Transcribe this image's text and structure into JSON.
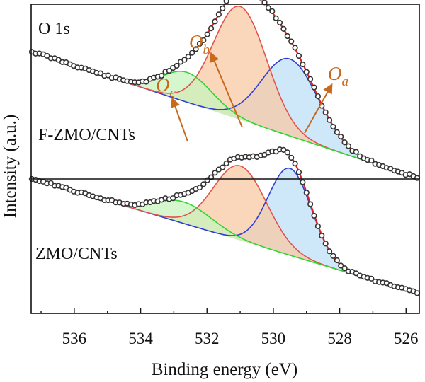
{
  "chart_data": {
    "type": "line",
    "title": "O 1s",
    "xlabel": "Binding energy (eV)",
    "ylabel": "Intensity (a.u.)",
    "xlim": [
      537.3,
      525.6
    ],
    "x_reversed": true,
    "x_ticks": [
      536,
      534,
      532,
      530,
      528,
      526
    ],
    "y_ticks_shown": false,
    "legend": "none",
    "panels": [
      {
        "label": "F-ZMO/CNTs",
        "baseline": 1.0,
        "x_range": [
          537.3,
          525.6
        ],
        "components": [
          {
            "name": "O_a",
            "center": 529.5,
            "sigma": 0.85,
            "amp": 0.85,
            "color": "#2d3ed6",
            "fill": "#bfe0f7"
          },
          {
            "name": "O_b",
            "center": 531.0,
            "sigma": 0.8,
            "amp": 1.25,
            "color": "#e2524b",
            "fill": "#f8c9a4"
          },
          {
            "name": "O_c",
            "center": 532.6,
            "sigma": 0.75,
            "amp": 0.33,
            "color": "#2fd62f",
            "fill": "#c8f3bd"
          }
        ],
        "background_slope": 0.012
      },
      {
        "label": "ZMO/CNTs",
        "baseline": 1.0,
        "x_range": [
          537.3,
          525.6
        ],
        "components": [
          {
            "name": "O_a",
            "center": 529.5,
            "sigma": 0.65,
            "amp": 1.05,
            "color": "#2d3ed6",
            "fill": "#bfe0f7"
          },
          {
            "name": "O_b",
            "center": 531.0,
            "sigma": 0.8,
            "amp": 0.9,
            "color": "#e2524b",
            "fill": "#f8c9a4"
          },
          {
            "name": "O_c",
            "center": 532.7,
            "sigma": 0.85,
            "amp": 0.26,
            "color": "#2fd62f",
            "fill": "#c8f3bd"
          }
        ],
        "background_slope": 0.012
      }
    ],
    "annotations": [
      {
        "text": "O",
        "sub": "a",
        "panel": 0,
        "peak": "O_a"
      },
      {
        "text": "O",
        "sub": "b",
        "panel": 0,
        "peak": "O_b"
      },
      {
        "text": "O",
        "sub": "c",
        "panel": 0,
        "peak": "O_c"
      }
    ],
    "colors": {
      "fit": "#e02020",
      "data_marker": "#333333",
      "data_marker_fill": "#ffffff",
      "arrow": "#c8691c"
    }
  }
}
